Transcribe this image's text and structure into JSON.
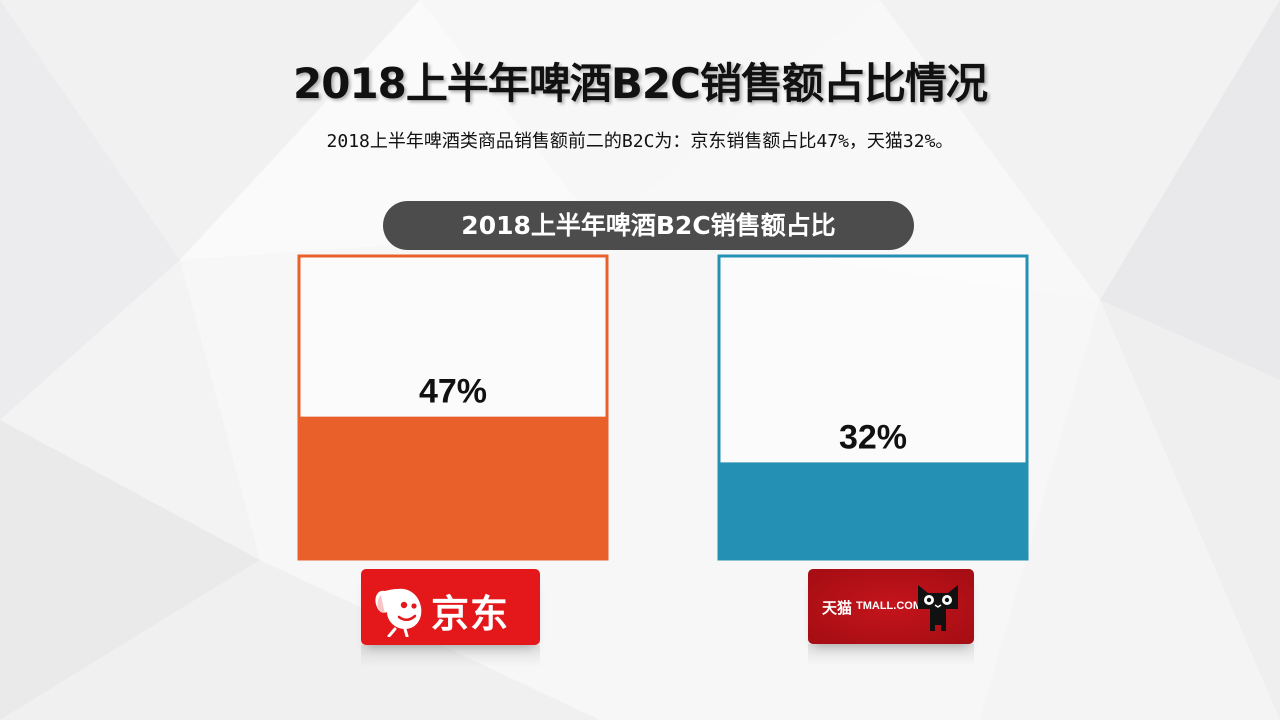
{
  "slide": {
    "title": "2018上半年啤酒B2C销售额占比情况",
    "subtitle": "2018上半年啤酒类商品销售额前二的B2C为：京东销售额占比47%，天猫32%。"
  },
  "chart_data": {
    "type": "bar",
    "title": "2018上半年啤酒B2C销售额占比",
    "categories": [
      "京东",
      "天猫"
    ],
    "values": [
      47,
      32
    ],
    "value_labels": [
      "47%",
      "32%"
    ],
    "unit": "%",
    "ylim": [
      0,
      100
    ],
    "colors": [
      "#e9602b",
      "#2390b4"
    ],
    "grid": false,
    "legend": "none"
  },
  "logos": {
    "jd": {
      "text": "京东",
      "icon": "jd-dog-icon",
      "color": "#e4181b"
    },
    "tmall": {
      "text_cn": "天猫",
      "text_en": "TMALL.COM",
      "icon": "tmall-cat-icon",
      "color": "#b5111a"
    }
  }
}
